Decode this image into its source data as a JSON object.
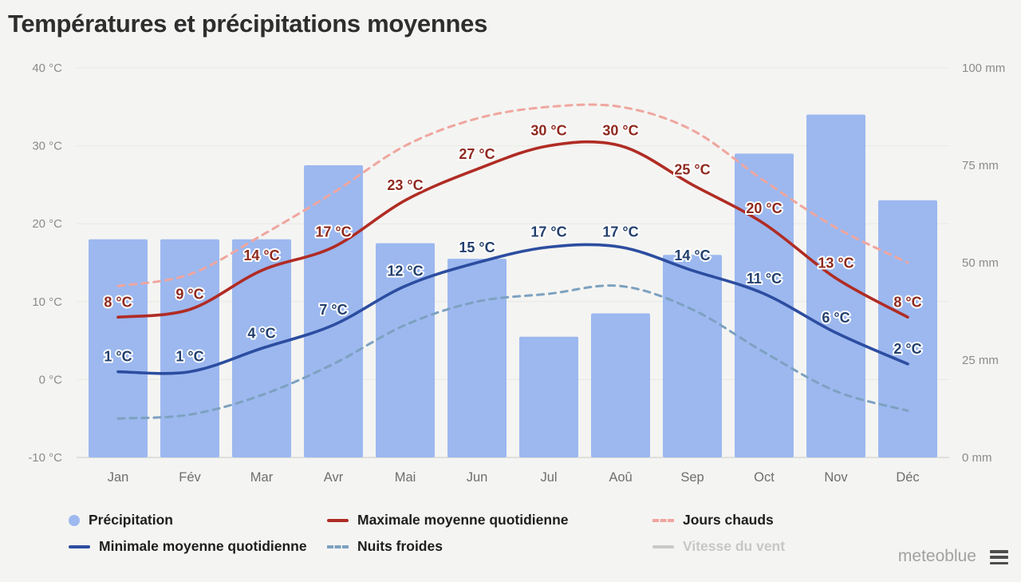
{
  "title": "Températures et précipitations moyennes",
  "chart_data": {
    "type": "combo",
    "title": "Températures et précipitations moyennes",
    "categories": [
      "Jan",
      "Fév",
      "Mar",
      "Avr",
      "Mai",
      "Jun",
      "Jul",
      "Aoû",
      "Sep",
      "Oct",
      "Nov",
      "Déc"
    ],
    "left_axis": {
      "unit": "°C",
      "ticks": [
        40,
        30,
        20,
        10,
        0,
        -10
      ],
      "range": [
        -10,
        40
      ]
    },
    "right_axis": {
      "unit": "mm",
      "ticks": [
        100,
        75,
        50,
        25,
        0
      ],
      "range": [
        0,
        100
      ]
    },
    "grid": "horizontal",
    "legend_position": "bottom",
    "series": [
      {
        "name": "Précipitation",
        "type": "bar",
        "axis": "right",
        "unit": "mm",
        "color": "#9cb8ef",
        "values": [
          56,
          56,
          56,
          75,
          55,
          51,
          31,
          37,
          52,
          78,
          88,
          66
        ]
      },
      {
        "name": "Jours chauds",
        "type": "line",
        "dashed": true,
        "axis": "left",
        "unit": "°C",
        "color": "#efa69f",
        "show_labels": false,
        "values": [
          12,
          13.5,
          18.5,
          24,
          30,
          33.5,
          35,
          35,
          32,
          25.5,
          19.5,
          15
        ]
      },
      {
        "name": "Nuits froides",
        "type": "line",
        "dashed": true,
        "axis": "left",
        "unit": "°C",
        "color": "#7da1c0",
        "show_labels": false,
        "values": [
          -5,
          -4.5,
          -2,
          2,
          7,
          10,
          11,
          12,
          9,
          3.5,
          -1.5,
          -4
        ]
      },
      {
        "name": "Maximale moyenne quotidienne",
        "type": "line",
        "dashed": false,
        "axis": "left",
        "unit": "°C",
        "color": "#b02c24",
        "label_color": "#8f2a1f",
        "show_labels": true,
        "values": [
          8,
          9,
          14,
          17,
          23,
          27,
          30,
          30,
          25,
          20,
          13,
          8
        ]
      },
      {
        "name": "Minimale moyenne quotidienne",
        "type": "line",
        "dashed": false,
        "axis": "left",
        "unit": "°C",
        "color": "#2c4da0",
        "label_color": "#23406e",
        "show_labels": true,
        "values": [
          1,
          1,
          4,
          7,
          12,
          15,
          17,
          17,
          14,
          11,
          6,
          2
        ]
      }
    ]
  },
  "legend": {
    "items": [
      {
        "label": "Précipitation",
        "swatch": "circle",
        "color": "#9cb8ef",
        "enabled": true
      },
      {
        "label": "Maximale moyenne quotidienne",
        "swatch": "line",
        "color": "#b02c24",
        "enabled": true
      },
      {
        "label": "Jours chauds",
        "swatch": "dashed",
        "color": "#efa69f",
        "enabled": true
      },
      {
        "label": "Minimale moyenne quotidienne",
        "swatch": "line",
        "color": "#2c4da0",
        "enabled": true
      },
      {
        "label": "Nuits froides",
        "swatch": "dashed",
        "color": "#7da1c0",
        "enabled": true
      },
      {
        "label": "Vitesse du vent",
        "swatch": "line",
        "color": "#c9c9c7",
        "enabled": false
      }
    ]
  },
  "footer": {
    "watermark": "meteoblue",
    "menu_icon": "hamburger-icon"
  },
  "colors": {
    "background": "#f4f4f2",
    "grid": "#e8e8e5",
    "axis_line": "#d8d8d5",
    "tick_text": "#8b8b8b",
    "month_text": "#6e6e6e",
    "title_text": "#2e2e2e",
    "legend_text": "#1e1e1e",
    "legend_disabled_text": "#c7c7c5",
    "watermark_text": "#a2a2a2"
  }
}
